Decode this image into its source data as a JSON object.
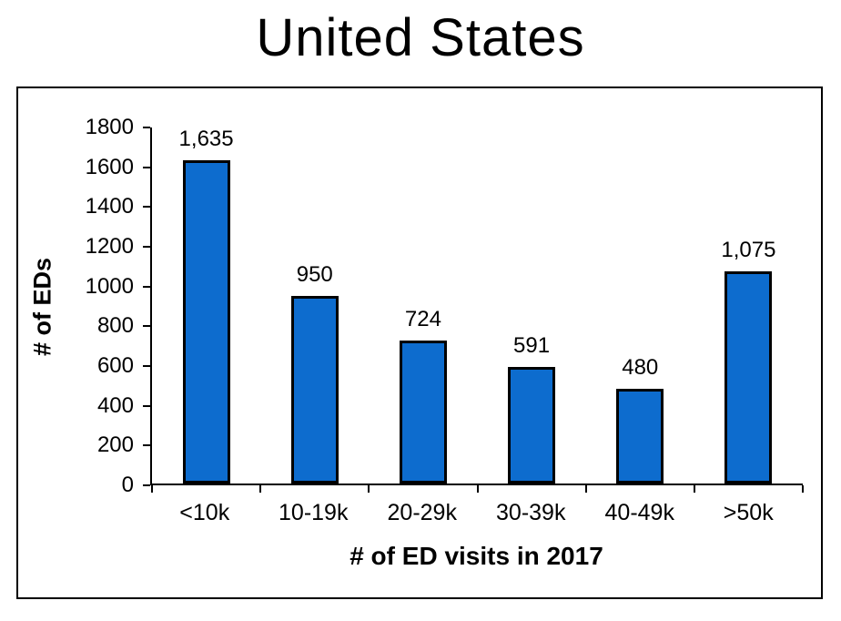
{
  "title": "United States",
  "chart_data": {
    "type": "bar",
    "title": "United States",
    "categories": [
      "<10k",
      "10-19k",
      "20-29k",
      "30-39k",
      "40-49k",
      ">50k"
    ],
    "values": [
      1635,
      950,
      724,
      591,
      480,
      1075
    ],
    "value_labels": [
      "1,635",
      "950",
      "724",
      "591",
      "480",
      "1,075"
    ],
    "xlabel": "# of ED visits in 2017",
    "ylabel": "# of EDs",
    "ylim": [
      0,
      1800
    ],
    "ytick_interval": 200,
    "ytick_labels": [
      "0",
      "200",
      "400",
      "600",
      "800",
      "1000",
      "1200",
      "1400",
      "1600",
      "1800"
    ],
    "grid": false,
    "legend": false,
    "bar_color": "#0d6cce",
    "bar_border_color": "#000000",
    "background_color": "#ffffff",
    "text_color": "#000000"
  }
}
